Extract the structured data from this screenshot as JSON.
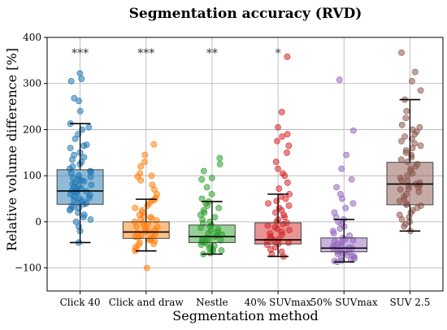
{
  "chart_data": {
    "type": "box",
    "title": "Segmentation accuracy (RVD)",
    "xlabel": "Segmentation method",
    "ylabel": "Relative volume difference [%]",
    "ylim": [
      -150,
      400
    ],
    "yticks": [
      -100,
      0,
      100,
      200,
      300,
      400
    ],
    "grid": true,
    "categories": [
      "Click 40",
      "Click and draw",
      "Nestle",
      "40% SUVmax",
      "50% SUVmax",
      "SUV 2.5"
    ],
    "colors": [
      "#1f77b4",
      "#ff7f0e",
      "#2ca02c",
      "#d62728",
      "#9467bd",
      "#8c564b"
    ],
    "boxes": [
      {
        "name": "Click 40",
        "whisker_low": -45,
        "q1": 38,
        "median": 67,
        "q3": 113,
        "whisker_high": 213,
        "significance": "***",
        "points": [
          322,
          310,
          305,
          268,
          262,
          240,
          213,
          205,
          200,
          190,
          180,
          167,
          165,
          160,
          150,
          145,
          140,
          135,
          130,
          125,
          120,
          115,
          110,
          108,
          105,
          100,
          98,
          95,
          92,
          90,
          88,
          85,
          82,
          80,
          78,
          75,
          72,
          70,
          68,
          66,
          65,
          63,
          60,
          58,
          55,
          52,
          50,
          48,
          45,
          42,
          40,
          38,
          35,
          32,
          30,
          28,
          25,
          20,
          15,
          10,
          5,
          0,
          -10,
          -20,
          -45
        ]
      },
      {
        "name": "Click and draw",
        "whisker_low": -63,
        "q1": -36,
        "median": -22,
        "q3": 0,
        "whisker_high": 49,
        "significance": "***",
        "points": [
          168,
          145,
          130,
          120,
          105,
          100,
          98,
          90,
          80,
          70,
          60,
          52,
          48,
          45,
          40,
          35,
          30,
          25,
          20,
          15,
          12,
          10,
          8,
          5,
          3,
          0,
          -2,
          -5,
          -8,
          -10,
          -12,
          -15,
          -18,
          -20,
          -22,
          -24,
          -26,
          -28,
          -30,
          -32,
          -34,
          -36,
          -38,
          -40,
          -42,
          -45,
          -48,
          -50,
          -55,
          -60,
          -63,
          -100
        ]
      },
      {
        "name": "Nestle",
        "whisker_low": -70,
        "q1": -45,
        "median": -32,
        "q3": -7,
        "whisker_high": 44,
        "significance": "**",
        "points": [
          138,
          125,
          110,
          95,
          92,
          75,
          60,
          50,
          44,
          40,
          35,
          30,
          25,
          20,
          15,
          10,
          5,
          0,
          -3,
          -7,
          -10,
          -13,
          -16,
          -19,
          -22,
          -25,
          -28,
          -30,
          -32,
          -34,
          -36,
          -38,
          -40,
          -42,
          -44,
          -45,
          -48,
          -50,
          -52,
          -55,
          -58,
          -60,
          -62,
          -65,
          -68,
          -70
        ]
      },
      {
        "name": "40% SUVmax",
        "whisker_low": -75,
        "q1": -48,
        "median": -39,
        "q3": -2,
        "whisker_high": 60,
        "significance": "*",
        "points": [
          358,
          238,
          205,
          190,
          185,
          175,
          165,
          150,
          130,
          115,
          105,
          100,
          85,
          72,
          60,
          55,
          50,
          45,
          40,
          35,
          30,
          25,
          20,
          15,
          10,
          5,
          0,
          -2,
          -5,
          -8,
          -12,
          -15,
          -18,
          -22,
          -25,
          -28,
          -32,
          -35,
          -38,
          -40,
          -42,
          -45,
          -48,
          -50,
          -55,
          -60,
          -65,
          -70,
          -75
        ]
      },
      {
        "name": "50% SUVmax",
        "whisker_low": -87,
        "q1": -65,
        "median": -57,
        "q3": -35,
        "whisker_high": 5,
        "significance": "",
        "points": [
          308,
          198,
          145,
          115,
          92,
          75,
          60,
          50,
          40,
          30,
          20,
          10,
          5,
          0,
          -5,
          -10,
          -15,
          -20,
          -25,
          -30,
          -35,
          -38,
          -40,
          -42,
          -45,
          -48,
          -50,
          -52,
          -54,
          -56,
          -57,
          -58,
          -60,
          -62,
          -64,
          -65,
          -66,
          -68,
          -70,
          -72,
          -74,
          -76,
          -78,
          -80,
          -82,
          -84,
          -85,
          -87
        ]
      },
      {
        "name": "SUV 2.5",
        "whisker_low": -20,
        "q1": 37,
        "median": 82,
        "q3": 129,
        "whisker_high": 265,
        "significance": "",
        "points": [
          367,
          325,
          305,
          285,
          265,
          240,
          225,
          210,
          205,
          200,
          195,
          190,
          185,
          180,
          175,
          170,
          165,
          160,
          155,
          150,
          145,
          140,
          135,
          130,
          125,
          120,
          115,
          110,
          105,
          100,
          95,
          90,
          88,
          85,
          82,
          80,
          78,
          75,
          72,
          70,
          65,
          60,
          55,
          50,
          45,
          40,
          37,
          35,
          30,
          25,
          20,
          15,
          10,
          5,
          0,
          -5,
          -10,
          -20
        ]
      }
    ]
  }
}
